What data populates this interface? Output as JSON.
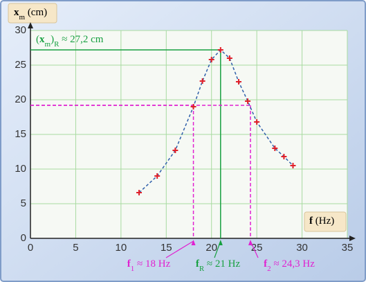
{
  "chart_data": {
    "type": "line",
    "x_label": [
      {
        "text": "f",
        "bold": true
      },
      {
        "text": " (Hz)"
      }
    ],
    "y_label": [
      {
        "text": "x",
        "bold": true
      },
      {
        "text": "m",
        "sub": true
      },
      {
        "text": " (cm)"
      }
    ],
    "x": [
      12,
      14,
      16,
      18,
      19,
      20,
      21,
      22,
      23,
      24,
      25,
      27,
      28,
      29
    ],
    "values": [
      6.6,
      9.0,
      12.7,
      19.0,
      22.7,
      25.8,
      27.2,
      26.0,
      22.6,
      19.8,
      16.8,
      13.0,
      11.8,
      10.5
    ],
    "line_color": "#2f5faa",
    "marker_color": "#e0202a",
    "xlim": [
      0,
      35
    ],
    "ylim": [
      0,
      30
    ],
    "xticks": [
      0,
      5,
      10,
      15,
      20,
      25,
      30,
      35
    ],
    "yticks": [
      0,
      5,
      10,
      15,
      20,
      25,
      30
    ],
    "grid": true,
    "grid_color": "#a8dba0",
    "annotations": [
      {
        "x": 21,
        "y": 27.2,
        "color": "#17a040",
        "dashed": false,
        "label": [
          {
            "text": "f",
            "bold": true
          },
          {
            "text": "R",
            "sub": true
          },
          {
            "text": " ≈ 21 Hz"
          }
        ],
        "y_label": [
          {
            "text": "("
          },
          {
            "text": "x",
            "bold": true
          },
          {
            "text": "m",
            "sub": true
          },
          {
            "text": ")"
          },
          {
            "text": "R",
            "sub": true
          },
          {
            "text": " ≈ 27,2 cm"
          }
        ]
      },
      {
        "x": 18,
        "y": 19.2,
        "color": "#e020d0",
        "dashed": true,
        "label": [
          {
            "text": "f",
            "bold": true
          },
          {
            "text": "1",
            "sub": true
          },
          {
            "text": " ≈ 18 Hz"
          }
        ]
      },
      {
        "x": 24.3,
        "y": 19.2,
        "color": "#e020d0",
        "dashed": true,
        "label": [
          {
            "text": "f",
            "bold": true
          },
          {
            "text": "2",
            "sub": true
          },
          {
            "text": " ≈ 24,3 Hz"
          }
        ]
      }
    ]
  }
}
